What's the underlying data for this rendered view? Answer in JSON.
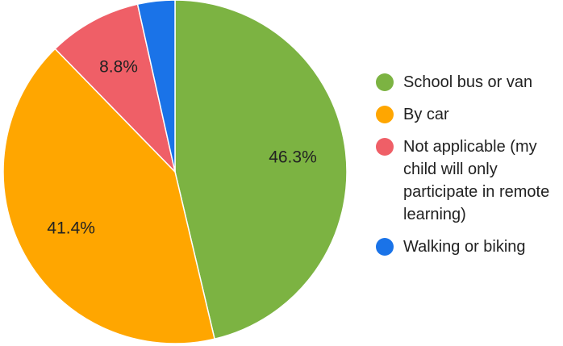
{
  "chart_data": {
    "type": "pie",
    "categories": [
      "School bus or van",
      "By car",
      "Not applicable (my child will only participate in remote learning)",
      "Walking or biking"
    ],
    "values": [
      46.3,
      41.4,
      8.8,
      3.5
    ],
    "value_labels": [
      "46.3%",
      "41.4%",
      "8.8%",
      null
    ],
    "colors": [
      "#7cb342",
      "#ffa600",
      "#ef5f67",
      "#1a73e8"
    ],
    "legend": "right"
  }
}
